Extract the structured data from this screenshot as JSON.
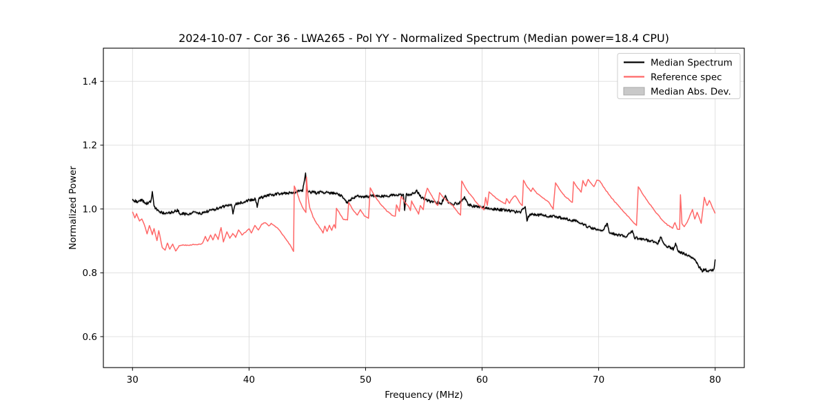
{
  "chart_data": {
    "type": "line",
    "title": "2024-10-07 - Cor 36 - LWA265 - Pol YY - Normalized Spectrum (Median power=18.4 CPU)",
    "xlabel": "Frequency (MHz)",
    "ylabel": "Normalized Power",
    "xlim": [
      27.5,
      82.5
    ],
    "ylim": [
      0.503,
      1.504
    ],
    "xticks": [
      30,
      40,
      50,
      60,
      70,
      80
    ],
    "yticks": [
      0.6,
      0.8,
      1.0,
      1.2,
      1.4
    ],
    "grid": true,
    "grid_color": "#dcdcdc",
    "legend_position": "upper right",
    "series": [
      {
        "name": "Median Spectrum",
        "color": "#000000",
        "line_width": 1.5,
        "noise_amplitude": 0.0042,
        "points": [
          [
            30.0,
            1.03
          ],
          [
            30.4,
            1.022
          ],
          [
            30.8,
            1.028
          ],
          [
            31.2,
            1.018
          ],
          [
            31.55,
            1.022
          ],
          [
            31.7,
            1.051
          ],
          [
            31.85,
            1.008
          ],
          [
            32.2,
            0.993
          ],
          [
            32.6,
            0.988
          ],
          [
            33.0,
            0.987
          ],
          [
            33.4,
            0.989
          ],
          [
            33.85,
            0.996
          ],
          [
            34.1,
            0.986
          ],
          [
            34.6,
            0.984
          ],
          [
            35.0,
            0.983
          ],
          [
            35.35,
            0.993
          ],
          [
            35.7,
            0.985
          ],
          [
            36.0,
            0.988
          ],
          [
            36.5,
            0.993
          ],
          [
            37.0,
            0.999
          ],
          [
            37.5,
            1.004
          ],
          [
            38.0,
            1.009
          ],
          [
            38.5,
            1.013
          ],
          [
            38.62,
            0.986
          ],
          [
            38.8,
            1.015
          ],
          [
            39.2,
            1.019
          ],
          [
            39.6,
            1.023
          ],
          [
            40.0,
            1.028
          ],
          [
            40.55,
            1.032
          ],
          [
            40.7,
            1.007
          ],
          [
            40.85,
            1.034
          ],
          [
            41.3,
            1.039
          ],
          [
            41.8,
            1.043
          ],
          [
            42.3,
            1.046
          ],
          [
            42.8,
            1.048
          ],
          [
            43.3,
            1.05
          ],
          [
            43.8,
            1.052
          ],
          [
            44.2,
            1.055
          ],
          [
            44.6,
            1.057
          ],
          [
            44.85,
            1.11
          ],
          [
            45.0,
            1.052
          ],
          [
            45.4,
            1.053
          ],
          [
            45.8,
            1.05
          ],
          [
            46.2,
            1.053
          ],
          [
            46.6,
            1.051
          ],
          [
            47.0,
            1.05
          ],
          [
            47.4,
            1.048
          ],
          [
            47.8,
            1.044
          ],
          [
            48.1,
            1.035
          ],
          [
            48.35,
            1.021
          ],
          [
            48.6,
            1.024
          ],
          [
            48.9,
            1.035
          ],
          [
            49.3,
            1.04
          ],
          [
            49.8,
            1.038
          ],
          [
            50.3,
            1.04
          ],
          [
            50.8,
            1.042
          ],
          [
            51.3,
            1.04
          ],
          [
            51.8,
            1.042
          ],
          [
            52.3,
            1.043
          ],
          [
            52.8,
            1.044
          ],
          [
            53.25,
            1.043
          ],
          [
            53.35,
            0.998
          ],
          [
            53.5,
            1.044
          ],
          [
            54.0,
            1.046
          ],
          [
            54.4,
            1.058
          ],
          [
            54.7,
            1.04
          ],
          [
            55.1,
            1.03
          ],
          [
            55.5,
            1.024
          ],
          [
            56.0,
            1.021
          ],
          [
            56.5,
            1.018
          ],
          [
            56.85,
            1.041
          ],
          [
            57.1,
            1.02
          ],
          [
            57.5,
            1.016
          ],
          [
            58.0,
            1.018
          ],
          [
            58.5,
            1.036
          ],
          [
            58.8,
            1.015
          ],
          [
            59.2,
            1.01
          ],
          [
            59.6,
            1.008
          ],
          [
            60.0,
            1.005
          ],
          [
            60.5,
            1.002
          ],
          [
            61.0,
            1.0
          ],
          [
            61.5,
            0.998
          ],
          [
            62.0,
            0.996
          ],
          [
            62.5,
            0.993
          ],
          [
            63.0,
            0.991
          ],
          [
            63.3,
            0.99
          ],
          [
            63.7,
            1.008
          ],
          [
            63.85,
            0.966
          ],
          [
            64.1,
            0.984
          ],
          [
            64.5,
            0.983
          ],
          [
            65.0,
            0.981
          ],
          [
            65.5,
            0.979
          ],
          [
            66.0,
            0.977
          ],
          [
            66.5,
            0.974
          ],
          [
            67.0,
            0.971
          ],
          [
            67.5,
            0.967
          ],
          [
            68.0,
            0.963
          ],
          [
            68.5,
            0.955
          ],
          [
            69.0,
            0.946
          ],
          [
            69.5,
            0.939
          ],
          [
            70.0,
            0.936
          ],
          [
            70.4,
            0.932
          ],
          [
            70.75,
            0.957
          ],
          [
            70.9,
            0.928
          ],
          [
            71.4,
            0.921
          ],
          [
            71.9,
            0.917
          ],
          [
            72.4,
            0.914
          ],
          [
            72.9,
            0.932
          ],
          [
            73.1,
            0.91
          ],
          [
            73.6,
            0.907
          ],
          [
            74.1,
            0.903
          ],
          [
            74.6,
            0.898
          ],
          [
            75.1,
            0.893
          ],
          [
            75.35,
            0.915
          ],
          [
            75.6,
            0.888
          ],
          [
            76.0,
            0.882
          ],
          [
            76.4,
            0.875
          ],
          [
            76.6,
            0.892
          ],
          [
            76.8,
            0.868
          ],
          [
            77.2,
            0.862
          ],
          [
            77.6,
            0.855
          ],
          [
            78.0,
            0.845
          ],
          [
            78.3,
            0.838
          ],
          [
            78.6,
            0.82
          ],
          [
            78.9,
            0.806
          ],
          [
            79.1,
            0.812
          ],
          [
            79.35,
            0.804
          ],
          [
            79.6,
            0.812
          ],
          [
            79.8,
            0.807
          ],
          [
            79.9,
            0.815
          ],
          [
            80.0,
            0.842
          ]
        ]
      },
      {
        "name": "Reference spec",
        "color": "#ff6666",
        "line_width": 1.5,
        "noise_amplitude": 0.0012,
        "points": [
          [
            30.0,
            0.992
          ],
          [
            30.2,
            0.972
          ],
          [
            30.35,
            0.985
          ],
          [
            30.6,
            0.962
          ],
          [
            30.8,
            0.97
          ],
          [
            31.0,
            0.952
          ],
          [
            31.25,
            0.923
          ],
          [
            31.45,
            0.948
          ],
          [
            31.7,
            0.92
          ],
          [
            31.85,
            0.938
          ],
          [
            32.1,
            0.9
          ],
          [
            32.25,
            0.933
          ],
          [
            32.55,
            0.88
          ],
          [
            32.8,
            0.872
          ],
          [
            33.0,
            0.893
          ],
          [
            33.2,
            0.873
          ],
          [
            33.45,
            0.89
          ],
          [
            33.7,
            0.868
          ],
          [
            34.0,
            0.884
          ],
          [
            34.4,
            0.887
          ],
          [
            34.8,
            0.886
          ],
          [
            35.2,
            0.889
          ],
          [
            35.6,
            0.888
          ],
          [
            36.0,
            0.892
          ],
          [
            36.25,
            0.913
          ],
          [
            36.45,
            0.898
          ],
          [
            36.7,
            0.918
          ],
          [
            36.9,
            0.903
          ],
          [
            37.1,
            0.921
          ],
          [
            37.35,
            0.905
          ],
          [
            37.6,
            0.942
          ],
          [
            37.8,
            0.897
          ],
          [
            38.1,
            0.928
          ],
          [
            38.35,
            0.908
          ],
          [
            38.6,
            0.923
          ],
          [
            38.85,
            0.912
          ],
          [
            39.1,
            0.934
          ],
          [
            39.4,
            0.918
          ],
          [
            39.7,
            0.928
          ],
          [
            40.0,
            0.938
          ],
          [
            40.2,
            0.926
          ],
          [
            40.5,
            0.948
          ],
          [
            40.8,
            0.935
          ],
          [
            41.1,
            0.952
          ],
          [
            41.4,
            0.958
          ],
          [
            41.7,
            0.946
          ],
          [
            41.9,
            0.954
          ],
          [
            42.2,
            0.947
          ],
          [
            42.5,
            0.938
          ],
          [
            43.0,
            0.915
          ],
          [
            43.5,
            0.888
          ],
          [
            43.82,
            0.868
          ],
          [
            43.88,
            1.073
          ],
          [
            44.1,
            1.053
          ],
          [
            44.4,
            1.02
          ],
          [
            44.7,
            0.998
          ],
          [
            44.88,
            0.99
          ],
          [
            44.93,
            1.1
          ],
          [
            45.05,
            1.04
          ],
          [
            45.2,
            1.005
          ],
          [
            45.5,
            0.975
          ],
          [
            45.8,
            0.955
          ],
          [
            46.1,
            0.94
          ],
          [
            46.35,
            0.925
          ],
          [
            46.5,
            0.946
          ],
          [
            46.7,
            0.93
          ],
          [
            46.9,
            0.948
          ],
          [
            47.1,
            0.934
          ],
          [
            47.3,
            0.952
          ],
          [
            47.42,
            0.94
          ],
          [
            47.5,
            1.002
          ],
          [
            47.8,
            0.985
          ],
          [
            48.1,
            0.968
          ],
          [
            48.45,
            0.966
          ],
          [
            48.55,
            1.02
          ],
          [
            48.9,
            0.998
          ],
          [
            49.3,
            0.98
          ],
          [
            49.55,
            0.998
          ],
          [
            49.9,
            0.978
          ],
          [
            50.25,
            0.972
          ],
          [
            50.4,
            1.066
          ],
          [
            50.8,
            1.04
          ],
          [
            51.3,
            1.015
          ],
          [
            51.8,
            0.995
          ],
          [
            52.3,
            0.98
          ],
          [
            52.55,
            0.978
          ],
          [
            52.65,
            1.013
          ],
          [
            52.9,
            0.992
          ],
          [
            53.05,
            1.04
          ],
          [
            53.4,
            1.02
          ],
          [
            53.7,
            1.008
          ],
          [
            53.85,
            0.996
          ],
          [
            53.95,
            1.025
          ],
          [
            54.3,
            1.0
          ],
          [
            54.55,
            0.985
          ],
          [
            54.7,
            1.012
          ],
          [
            54.95,
            0.998
          ],
          [
            55.1,
            1.04
          ],
          [
            55.3,
            1.065
          ],
          [
            55.7,
            1.04
          ],
          [
            56.0,
            1.02
          ],
          [
            56.2,
            1.01
          ],
          [
            56.35,
            1.05
          ],
          [
            56.7,
            1.035
          ],
          [
            57.1,
            1.022
          ],
          [
            57.5,
            1.01
          ],
          [
            57.9,
            0.99
          ],
          [
            58.15,
            0.98
          ],
          [
            58.25,
            1.088
          ],
          [
            58.7,
            1.058
          ],
          [
            59.2,
            1.035
          ],
          [
            59.7,
            1.012
          ],
          [
            60.15,
            0.998
          ],
          [
            60.3,
            1.036
          ],
          [
            60.45,
            1.012
          ],
          [
            60.6,
            1.054
          ],
          [
            61.0,
            1.04
          ],
          [
            61.5,
            1.026
          ],
          [
            62.0,
            1.016
          ],
          [
            62.1,
            1.032
          ],
          [
            62.35,
            1.018
          ],
          [
            62.5,
            1.03
          ],
          [
            62.85,
            1.042
          ],
          [
            63.2,
            1.022
          ],
          [
            63.45,
            1.01
          ],
          [
            63.55,
            1.089
          ],
          [
            63.9,
            1.068
          ],
          [
            64.2,
            1.055
          ],
          [
            64.35,
            1.066
          ],
          [
            64.7,
            1.048
          ],
          [
            65.2,
            1.036
          ],
          [
            65.7,
            1.022
          ],
          [
            66.1,
            1.0
          ],
          [
            66.3,
            1.082
          ],
          [
            66.7,
            1.058
          ],
          [
            67.1,
            1.04
          ],
          [
            67.5,
            1.028
          ],
          [
            67.75,
            1.02
          ],
          [
            67.85,
            1.086
          ],
          [
            68.2,
            1.066
          ],
          [
            68.5,
            1.054
          ],
          [
            68.65,
            1.088
          ],
          [
            68.9,
            1.072
          ],
          [
            69.1,
            1.093
          ],
          [
            69.4,
            1.078
          ],
          [
            69.6,
            1.07
          ],
          [
            69.85,
            1.09
          ],
          [
            70.1,
            1.088
          ],
          [
            70.5,
            1.065
          ],
          [
            71.0,
            1.04
          ],
          [
            71.5,
            1.018
          ],
          [
            72.0,
            0.998
          ],
          [
            72.5,
            0.978
          ],
          [
            73.0,
            0.958
          ],
          [
            73.25,
            0.948
          ],
          [
            73.4,
            1.07
          ],
          [
            73.9,
            1.04
          ],
          [
            74.4,
            1.015
          ],
          [
            74.9,
            0.99
          ],
          [
            75.4,
            0.968
          ],
          [
            75.9,
            0.95
          ],
          [
            76.35,
            0.94
          ],
          [
            76.55,
            0.958
          ],
          [
            76.75,
            0.938
          ],
          [
            76.95,
            0.935
          ],
          [
            77.02,
            1.045
          ],
          [
            77.15,
            0.955
          ],
          [
            77.35,
            0.945
          ],
          [
            77.6,
            0.958
          ],
          [
            77.9,
            0.985
          ],
          [
            78.05,
            0.998
          ],
          [
            78.25,
            0.968
          ],
          [
            78.45,
            0.99
          ],
          [
            78.8,
            0.956
          ],
          [
            79.07,
            1.037
          ],
          [
            79.3,
            1.01
          ],
          [
            79.5,
            1.027
          ],
          [
            80.0,
            0.986
          ]
        ]
      },
      {
        "name": "Median Abs. Dev.",
        "type": "band",
        "color": "#c9c9c9",
        "edge_color": "#a8a8a8",
        "band_half_width": 0.0055,
        "follows": "Median Spectrum"
      }
    ]
  }
}
